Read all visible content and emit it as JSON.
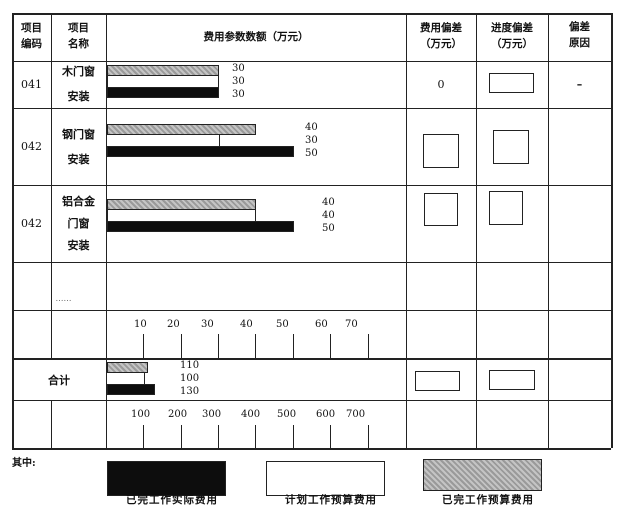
{
  "header": {
    "code": "项目\n编码",
    "name": "项目\n名称",
    "amount": "费用参数数额（万元）",
    "cost_dev": "费用偏差\n（万元）",
    "sched_dev": "进度偏差\n（万元）",
    "reason": "偏差\n原因"
  },
  "rows": [
    {
      "code": "041",
      "name": [
        "木门窗",
        "安装"
      ],
      "cost_dev": "0",
      "reason": "–"
    },
    {
      "code": "042",
      "name": [
        "钢门窗",
        "安装"
      ]
    },
    {
      "code": "042",
      "name": [
        "铝合金",
        "门窗",
        "安装"
      ]
    }
  ],
  "ellipsis": "……",
  "total_label": "合计",
  "legend_prefix": "其中:",
  "chart_data": {
    "type": "bar",
    "orientation": "horizontal",
    "series_legend": [
      "已完工作实际费用",
      "计划工作预算费用",
      "已完工作预算费用"
    ],
    "legend_colors": {
      "已完工作实际费用": "#0d0d0d",
      "计划工作预算费用": "#ffffff",
      "已完工作预算费用": "#a8a8a8"
    },
    "items": [
      {
        "values": {
          "bcwp": 30,
          "bcws": 30,
          "acwp": 30
        },
        "labels": [
          "30",
          "30",
          "30"
        ]
      },
      {
        "values": {
          "bcwp": 40,
          "bcws": 30,
          "acwp": 50
        },
        "labels": [
          "40",
          "30",
          "50"
        ]
      },
      {
        "values": {
          "bcwp": 40,
          "bcws": 40,
          "acwp": 50
        },
        "labels": [
          "40",
          "40",
          "50"
        ]
      }
    ],
    "axis_ticks": [
      "10",
      "20",
      "30",
      "40",
      "50",
      "60",
      "70"
    ],
    "total": {
      "values": {
        "bcwp": 110,
        "bcws": 100,
        "acwp": 130
      },
      "labels": [
        "110",
        "100",
        "130"
      ]
    },
    "total_axis_ticks": [
      "100",
      "200",
      "300",
      "400",
      "500",
      "600",
      "700"
    ]
  }
}
